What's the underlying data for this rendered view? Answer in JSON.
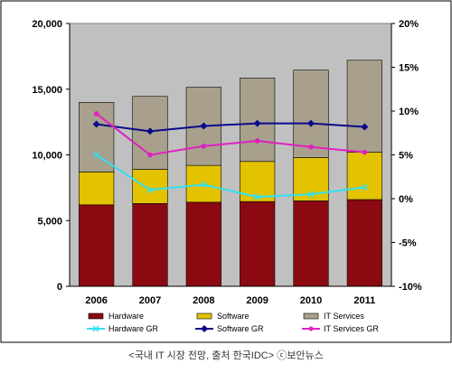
{
  "chart_data": {
    "type": "bar",
    "stacked": true,
    "categories": [
      "2006",
      "2007",
      "2008",
      "2009",
      "2010",
      "2011"
    ],
    "series": [
      {
        "name": "Hardware",
        "kind": "bar",
        "axis": "left",
        "color": "#8B0A12",
        "values": [
          6200,
          6300,
          6400,
          6450,
          6500,
          6600
        ]
      },
      {
        "name": "Software",
        "kind": "bar",
        "axis": "left",
        "color": "#E3C200",
        "values": [
          2500,
          2600,
          2800,
          3050,
          3300,
          3600
        ]
      },
      {
        "name": "IT Services",
        "kind": "bar",
        "axis": "left",
        "color": "#A8A08C",
        "values": [
          5300,
          5550,
          5950,
          6350,
          6650,
          7000
        ]
      },
      {
        "name": "Hardware GR",
        "kind": "line",
        "axis": "right",
        "color": "#33E0F0",
        "values": [
          5.0,
          1.0,
          1.6,
          0.2,
          0.5,
          1.3
        ]
      },
      {
        "name": "Software GR",
        "kind": "line",
        "axis": "right",
        "color": "#0A0A8C",
        "values": [
          8.5,
          7.7,
          8.3,
          8.6,
          8.6,
          8.2
        ]
      },
      {
        "name": "IT Services GR",
        "kind": "line",
        "axis": "right",
        "color": "#E020C0",
        "values": [
          9.7,
          5.0,
          6.0,
          6.6,
          5.9,
          5.3
        ]
      }
    ],
    "y_left": {
      "min": 0,
      "max": 20000,
      "ticks": [
        "0",
        "5,000",
        "10,000",
        "15,000",
        "20,000"
      ],
      "tick_values": [
        0,
        5000,
        10000,
        15000,
        20000
      ]
    },
    "y_right": {
      "min": -10,
      "max": 20,
      "ticks": [
        "-10%",
        "-5%",
        "0%",
        "5%",
        "10%",
        "15%",
        "20%"
      ],
      "tick_values": [
        -10,
        -5,
        0,
        5,
        10,
        15,
        20
      ]
    },
    "legend_position": "bottom",
    "plot_background": "#C0C0C0",
    "grid": false
  },
  "caption": "<국내 IT 시장 전망, 출처 한국IDC> ⓒ보안뉴스"
}
